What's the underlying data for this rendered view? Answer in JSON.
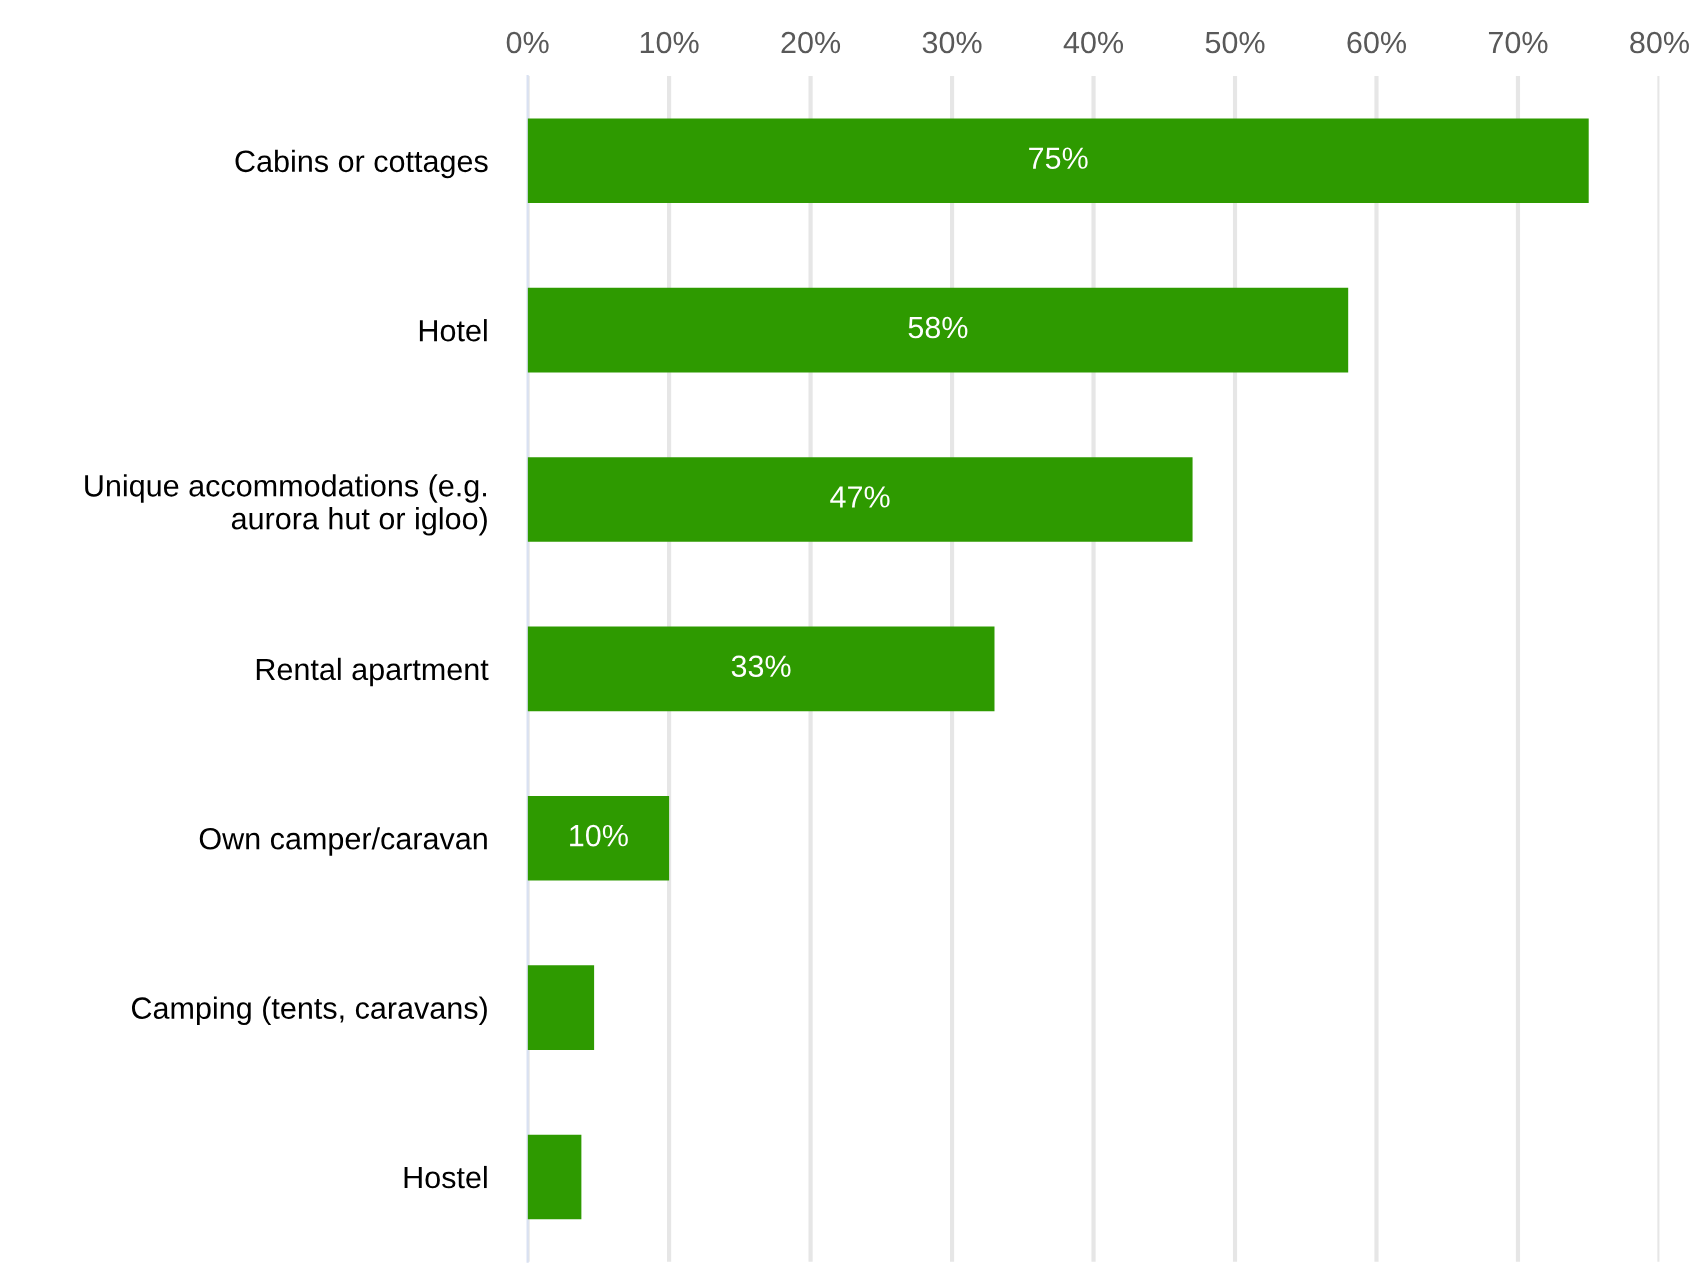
{
  "chart_data": {
    "type": "bar",
    "orientation": "horizontal",
    "categories": [
      "Cabins or cottages",
      "Hotel",
      "Unique accommodations (e.g.\naurora hut or igloo)",
      "Rental apartment",
      "Own camper/caravan",
      "Camping (tents, caravans)",
      "Hostel"
    ],
    "values": [
      75,
      58,
      47,
      33,
      10,
      4.7,
      3.8
    ],
    "value_labels": [
      "75%",
      "58%",
      "47%",
      "33%",
      "10%",
      null,
      null
    ],
    "color": "#2e9a00",
    "xlim": [
      0,
      80
    ],
    "xticks": [
      {
        "value": 0,
        "label": "0%"
      },
      {
        "value": 10,
        "label": "10%"
      },
      {
        "value": 20,
        "label": "20%"
      },
      {
        "value": 30,
        "label": "30%"
      },
      {
        "value": 40,
        "label": "40%"
      },
      {
        "value": 50,
        "label": "50%"
      },
      {
        "value": 60,
        "label": "60%"
      },
      {
        "value": 70,
        "label": "70%"
      },
      {
        "value": 80,
        "label": "80%"
      }
    ],
    "grid": "x"
  }
}
